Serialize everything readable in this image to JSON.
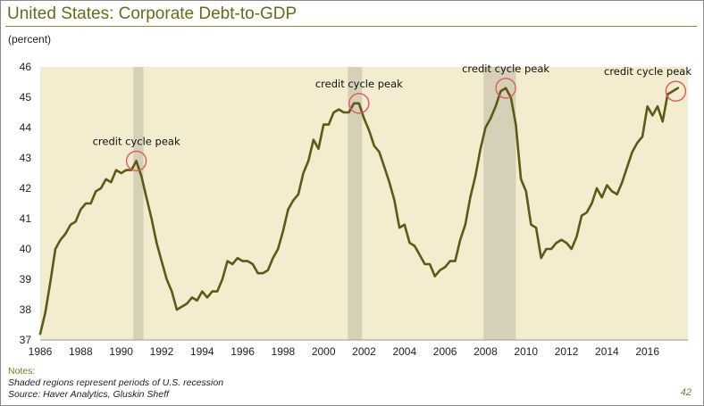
{
  "title": "United States: Corporate Debt-to-GDP",
  "units": "(percent)",
  "notes": {
    "label": "Notes:",
    "line1": "Shaded regions represent periods of U.S. recession",
    "line2": "Source: Haver Analytics, Gluskin Sheff"
  },
  "page_number": "42",
  "colors": {
    "plot_bg": "#f3ecce",
    "recession": "#d6d0b8",
    "line": "#5c5a15",
    "circle": "#e05a5a",
    "title": "#6b6a1a"
  },
  "chart_data": {
    "type": "line",
    "title": "United States: Corporate Debt-to-GDP",
    "ylabel": "(percent)",
    "xlim": [
      1986,
      2018
    ],
    "ylim": [
      37,
      46
    ],
    "x_ticks": [
      1986,
      1988,
      1990,
      1992,
      1994,
      1996,
      1998,
      2000,
      2002,
      2004,
      2006,
      2008,
      2010,
      2012,
      2014,
      2016
    ],
    "y_ticks": [
      37,
      38,
      39,
      40,
      41,
      42,
      43,
      44,
      45,
      46
    ],
    "grid": false,
    "recessions": [
      [
        1990.6,
        1991.1
      ],
      [
        2001.2,
        2001.9
      ],
      [
        2007.9,
        2009.5
      ]
    ],
    "series": [
      {
        "x": [
          1986.0,
          1986.25,
          1986.5,
          1986.75,
          1987.0,
          1987.25,
          1987.5,
          1987.75,
          1988.0,
          1988.25,
          1988.5,
          1988.75,
          1989.0,
          1989.25,
          1989.5,
          1989.75,
          1990.0,
          1990.25,
          1990.5,
          1990.75,
          1991.0,
          1991.25,
          1991.5,
          1991.75,
          1992.0,
          1992.25,
          1992.5,
          1992.75,
          1993.0,
          1993.25,
          1993.5,
          1993.75,
          1994.0,
          1994.25,
          1994.5,
          1994.75,
          1995.0,
          1995.25,
          1995.5,
          1995.75,
          1996.0,
          1996.25,
          1996.5,
          1996.75,
          1997.0,
          1997.25,
          1997.5,
          1997.75,
          1998.0,
          1998.25,
          1998.5,
          1998.75,
          1999.0,
          1999.25,
          1999.5,
          1999.75,
          2000.0,
          2000.25,
          2000.5,
          2000.75,
          2001.0,
          2001.25,
          2001.5,
          2001.75,
          2002.0,
          2002.25,
          2002.5,
          2002.75,
          2003.0,
          2003.25,
          2003.5,
          2003.75,
          2004.0,
          2004.25,
          2004.5,
          2004.75,
          2005.0,
          2005.25,
          2005.5,
          2005.75,
          2006.0,
          2006.25,
          2006.5,
          2006.75,
          2007.0,
          2007.25,
          2007.5,
          2007.75,
          2008.0,
          2008.25,
          2008.5,
          2008.75,
          2009.0,
          2009.25,
          2009.5,
          2009.75,
          2010.0,
          2010.25,
          2010.5,
          2010.75,
          2011.0,
          2011.25,
          2011.5,
          2011.75,
          2012.0,
          2012.25,
          2012.5,
          2012.75,
          2013.0,
          2013.25,
          2013.5,
          2013.75,
          2014.0,
          2014.25,
          2014.5,
          2014.75,
          2015.0,
          2015.25,
          2015.5,
          2015.75,
          2016.0,
          2016.25,
          2016.5,
          2016.75,
          2017.0,
          2017.25,
          2017.5
        ],
        "values": [
          37.2,
          37.9,
          38.9,
          40.0,
          40.3,
          40.5,
          40.8,
          40.9,
          41.3,
          41.5,
          41.5,
          41.9,
          42.0,
          42.3,
          42.2,
          42.6,
          42.5,
          42.6,
          42.6,
          42.9,
          42.4,
          41.7,
          41.0,
          40.2,
          39.6,
          39.0,
          38.6,
          38.0,
          38.1,
          38.2,
          38.4,
          38.3,
          38.6,
          38.4,
          38.6,
          38.6,
          39.0,
          39.6,
          39.5,
          39.7,
          39.6,
          39.6,
          39.5,
          39.2,
          39.2,
          39.3,
          39.7,
          40.0,
          40.6,
          41.3,
          41.6,
          41.8,
          42.5,
          42.9,
          43.6,
          43.3,
          44.1,
          44.1,
          44.5,
          44.6,
          44.5,
          44.5,
          44.8,
          44.8,
          44.3,
          43.9,
          43.4,
          43.2,
          42.7,
          42.2,
          41.6,
          40.7,
          40.8,
          40.2,
          40.1,
          39.8,
          39.5,
          39.5,
          39.1,
          39.3,
          39.4,
          39.6,
          39.6,
          40.3,
          40.8,
          41.7,
          42.4,
          43.3,
          44.0,
          44.3,
          44.7,
          45.2,
          45.3,
          45.0,
          44.1,
          42.3,
          41.9,
          40.8,
          40.7,
          39.7,
          40.0,
          40.0,
          40.2,
          40.3,
          40.2,
          40.0,
          40.4,
          41.1,
          41.2,
          41.5,
          42.0,
          41.7,
          42.1,
          41.9,
          41.8,
          42.2,
          42.7,
          43.2,
          43.5,
          43.7,
          44.7,
          44.4,
          44.7,
          44.2,
          45.1,
          45.2,
          45.3
        ],
        "color": "#5c5a15"
      }
    ],
    "annotations": [
      {
        "text": "credit cycle peak",
        "x": 1990.75,
        "y": 42.9
      },
      {
        "text": "credit cycle peak",
        "x": 2001.75,
        "y": 44.8
      },
      {
        "text": "credit cycle peak",
        "x": 2009.0,
        "y": 45.3
      },
      {
        "text": "credit cycle peak",
        "x": 2017.4,
        "y": 45.2
      }
    ]
  }
}
